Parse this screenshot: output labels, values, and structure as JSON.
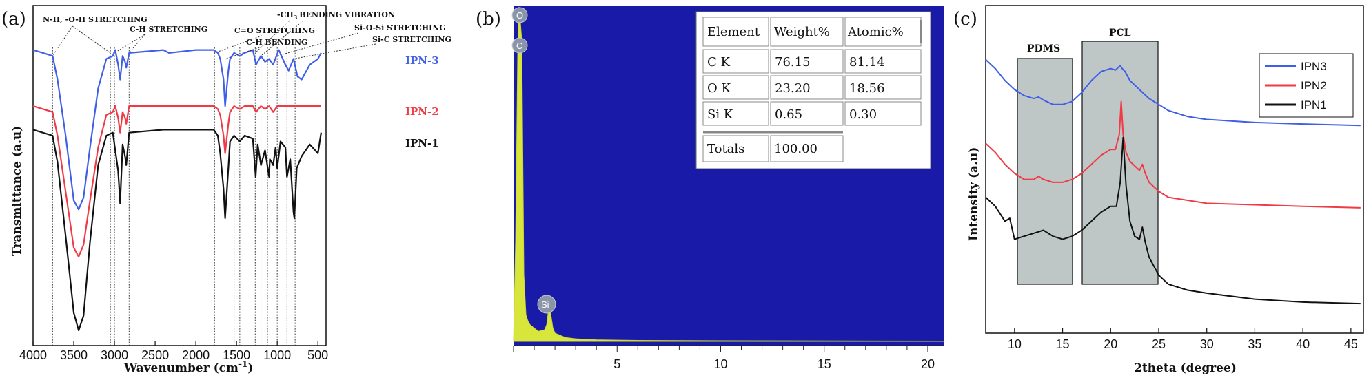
{
  "panels": {
    "a": {
      "letter": "(a)",
      "xlabel": "Wavenumber (cm",
      "xlabel_sup": "-1",
      "xlabel_close": ")",
      "ylabel": "Transmittance (a.u)",
      "xticks": [
        "4000",
        "3500",
        "3000",
        "2500",
        "2000",
        "1500",
        "1000",
        "500"
      ],
      "annotations": [
        "N-H, -O-H STRETCHING",
        "C-H STRETCHING",
        "C=O STRETCHING",
        "C-H BENDING",
        "-CH",
        "3",
        "BENDING VIBRATION",
        "Si-O-Si STRETCHING",
        "Si-C STRETCHING"
      ],
      "series_labels": [
        "IPN-3",
        "IPN-2",
        "IPN-1"
      ]
    },
    "b": {
      "letter": "(b)",
      "xticks": [
        "5",
        "10",
        "15",
        "20"
      ],
      "peak_labels": [
        "O",
        "C",
        "Si"
      ],
      "table": {
        "headers": [
          "Element",
          "Weight%",
          "Atomic%"
        ],
        "rows": [
          [
            "C K",
            "76.15",
            "81.14"
          ],
          [
            "O K",
            "23.20",
            "18.56"
          ],
          [
            "Si K",
            "0.65",
            "0.30"
          ]
        ],
        "totals": [
          "Totals",
          "100.00"
        ]
      }
    },
    "c": {
      "letter": "(c)",
      "xlabel": "2theta (degree)",
      "ylabel": "Intensity (a.u)",
      "xticks": [
        "10",
        "15",
        "20",
        "25",
        "30",
        "35",
        "40",
        "45"
      ],
      "box_labels": [
        "PDMS",
        "PCL"
      ],
      "legend": [
        "IPN3",
        "IPN2",
        "IPN1"
      ]
    }
  },
  "colors": {
    "ipn3": "#3f5fe8",
    "ipn2": "#f03a45",
    "ipn1": "#111111",
    "eds_bg": "#1a1aa8",
    "eds_fill": "#d8e63c",
    "box_fill": "#bfc6c6"
  },
  "chart_data": [
    {
      "type": "line",
      "panel": "a",
      "xlabel": "Wavenumber (cm-1)",
      "ylabel": "Transmittance (a.u)",
      "xlim": [
        4000,
        400
      ],
      "reversed_x": true,
      "y_ticks_shown": false,
      "grid": false,
      "series": [
        {
          "name": "IPN-3",
          "x": [
            4000,
            3760,
            3700,
            3600,
            3500,
            3440,
            3380,
            3300,
            3200,
            3100,
            3020,
            2990,
            2955,
            2930,
            2900,
            2870,
            2855,
            2820,
            2400,
            2330,
            2000,
            1780,
            1730,
            1700,
            1660,
            1640,
            1600,
            1580,
            1530,
            1460,
            1400,
            1300,
            1260,
            1200,
            1150,
            1100,
            1050,
            1010,
            980,
            900,
            860,
            800,
            750,
            700,
            600,
            500,
            460
          ],
          "y": [
            0.95,
            0.93,
            0.85,
            0.66,
            0.44,
            0.41,
            0.45,
            0.62,
            0.82,
            0.92,
            0.93,
            0.95,
            0.9,
            0.85,
            0.93,
            0.91,
            0.89,
            0.94,
            0.95,
            0.94,
            0.95,
            0.95,
            0.94,
            0.92,
            0.85,
            0.76,
            0.88,
            0.92,
            0.94,
            0.93,
            0.94,
            0.95,
            0.9,
            0.93,
            0.91,
            0.92,
            0.9,
            0.93,
            0.95,
            0.9,
            0.88,
            0.92,
            0.86,
            0.85,
            0.9,
            0.92,
            0.94
          ]
        },
        {
          "name": "IPN-2",
          "x": [
            4000,
            3760,
            3700,
            3600,
            3500,
            3440,
            3380,
            3300,
            3200,
            3100,
            3020,
            2990,
            2955,
            2930,
            2900,
            2870,
            2855,
            2820,
            2400,
            2000,
            1780,
            1730,
            1700,
            1660,
            1640,
            1600,
            1580,
            1530,
            1460,
            1400,
            1300,
            1260,
            1200,
            1150,
            1100,
            1050,
            1000,
            900,
            800,
            700,
            600,
            500,
            460
          ],
          "y": [
            0.76,
            0.74,
            0.66,
            0.47,
            0.28,
            0.25,
            0.29,
            0.44,
            0.62,
            0.73,
            0.74,
            0.76,
            0.72,
            0.67,
            0.74,
            0.72,
            0.7,
            0.76,
            0.76,
            0.76,
            0.76,
            0.75,
            0.73,
            0.66,
            0.6,
            0.7,
            0.74,
            0.76,
            0.75,
            0.76,
            0.76,
            0.74,
            0.76,
            0.75,
            0.76,
            0.74,
            0.76,
            0.76,
            0.76,
            0.76,
            0.76,
            0.76,
            0.76
          ]
        },
        {
          "name": "IPN-1",
          "x": [
            4000,
            3760,
            3700,
            3600,
            3500,
            3440,
            3380,
            3300,
            3200,
            3100,
            3020,
            2990,
            2955,
            2930,
            2900,
            2870,
            2855,
            2820,
            2400,
            2000,
            1780,
            1730,
            1700,
            1660,
            1640,
            1600,
            1580,
            1530,
            1460,
            1400,
            1300,
            1265,
            1240,
            1200,
            1150,
            1100,
            1090,
            1050,
            1020,
            1000,
            960,
            900,
            880,
            840,
            800,
            790,
            760,
            700,
            600,
            500,
            460
          ],
          "y": [
            0.68,
            0.66,
            0.57,
            0.32,
            0.06,
            0.0,
            0.05,
            0.3,
            0.56,
            0.66,
            0.67,
            0.61,
            0.54,
            0.43,
            0.63,
            0.59,
            0.56,
            0.67,
            0.68,
            0.68,
            0.68,
            0.66,
            0.6,
            0.48,
            0.38,
            0.55,
            0.64,
            0.66,
            0.64,
            0.66,
            0.65,
            0.52,
            0.63,
            0.56,
            0.61,
            0.52,
            0.58,
            0.56,
            0.62,
            0.55,
            0.64,
            0.62,
            0.52,
            0.58,
            0.4,
            0.38,
            0.55,
            0.59,
            0.63,
            0.6,
            0.67
          ]
        }
      ]
    },
    {
      "type": "area",
      "panel": "b",
      "xlim": [
        0,
        20.8
      ],
      "y_ticks_shown": false,
      "grid": false,
      "x": [
        0,
        0.1,
        0.2,
        0.26,
        0.3,
        0.4,
        0.5,
        0.6,
        0.7,
        0.8,
        1.0,
        1.2,
        1.5,
        1.6,
        1.7,
        1.74,
        1.8,
        1.9,
        2.0,
        2.5,
        3.0,
        4.0,
        6.0,
        10.0,
        20.8
      ],
      "y": [
        0,
        0.3,
        0.85,
        1.0,
        0.98,
        0.9,
        0.2,
        0.08,
        0.06,
        0.05,
        0.04,
        0.03,
        0.035,
        0.05,
        0.1,
        0.12,
        0.08,
        0.04,
        0.025,
        0.012,
        0.008,
        0.005,
        0.003,
        0.002,
        0.001
      ]
    },
    {
      "type": "table",
      "panel": "b",
      "headers": [
        "Element",
        "Weight%",
        "Atomic%"
      ],
      "rows": [
        [
          "C K",
          "76.15",
          "81.14"
        ],
        [
          "O K",
          "23.20",
          "18.56"
        ],
        [
          "Si K",
          "0.65",
          "0.30"
        ],
        [
          "Totals",
          "100.00",
          ""
        ]
      ]
    },
    {
      "type": "line",
      "panel": "c",
      "xlabel": "2theta (degree)",
      "ylabel": "Intensity (a.u)",
      "xlim": [
        7,
        46
      ],
      "y_ticks_shown": false,
      "grid": false,
      "legend": "top-right",
      "series": [
        {
          "name": "IPN3",
          "x": [
            7,
            8,
            9,
            10,
            11,
            12,
            12.5,
            13,
            14,
            15,
            16,
            17,
            18,
            19,
            20,
            20.5,
            21,
            21.2,
            21.5,
            22,
            23,
            24,
            25,
            26,
            28,
            30,
            35,
            40,
            46
          ],
          "y": [
            0.87,
            0.84,
            0.8,
            0.77,
            0.75,
            0.74,
            0.745,
            0.735,
            0.72,
            0.72,
            0.73,
            0.76,
            0.8,
            0.83,
            0.84,
            0.835,
            0.85,
            0.84,
            0.83,
            0.8,
            0.77,
            0.74,
            0.72,
            0.7,
            0.68,
            0.67,
            0.66,
            0.655,
            0.65
          ]
        },
        {
          "name": "IPN2",
          "x": [
            7,
            8,
            9,
            10,
            11,
            12,
            12.5,
            13,
            14,
            15,
            16,
            17,
            18,
            19,
            20,
            20.5,
            20.9,
            21.1,
            21.3,
            21.6,
            22,
            23,
            23.3,
            23.6,
            24,
            25,
            26,
            28,
            30,
            35,
            40,
            46
          ],
          "y": [
            0.59,
            0.56,
            0.52,
            0.49,
            0.47,
            0.47,
            0.48,
            0.47,
            0.46,
            0.46,
            0.47,
            0.49,
            0.52,
            0.55,
            0.57,
            0.57,
            0.62,
            0.73,
            0.62,
            0.56,
            0.53,
            0.5,
            0.52,
            0.49,
            0.46,
            0.43,
            0.41,
            0.4,
            0.39,
            0.385,
            0.38,
            0.375
          ]
        },
        {
          "name": "IPN1",
          "x": [
            7,
            8,
            9,
            9.5,
            10,
            11,
            12,
            13,
            14,
            15,
            16,
            17,
            18,
            19,
            20,
            20.6,
            21,
            21.3,
            21.6,
            22,
            22.5,
            23,
            23.3,
            23.6,
            24,
            25,
            26,
            28,
            30,
            35,
            40,
            46
          ],
          "y": [
            0.41,
            0.38,
            0.33,
            0.34,
            0.27,
            0.28,
            0.29,
            0.3,
            0.28,
            0.27,
            0.28,
            0.3,
            0.33,
            0.36,
            0.38,
            0.38,
            0.46,
            0.61,
            0.45,
            0.33,
            0.28,
            0.27,
            0.31,
            0.26,
            0.21,
            0.15,
            0.12,
            0.1,
            0.09,
            0.07,
            0.06,
            0.055
          ]
        }
      ]
    }
  ]
}
